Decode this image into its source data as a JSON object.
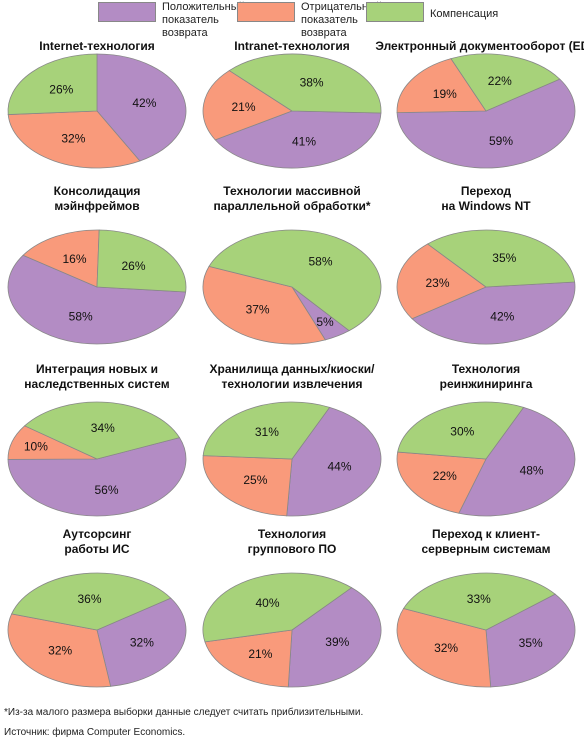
{
  "colors": {
    "positive": "#b38cc4",
    "negative": "#f99a7b",
    "compensation": "#a7d27a",
    "outline": "#888888"
  },
  "legend": [
    {
      "key": "positive",
      "label": "Положительный\nпоказатель возврата"
    },
    {
      "key": "negative",
      "label": "Отрицательный\nпоказатель возврата"
    },
    {
      "key": "compensation",
      "label": "Компенсация"
    }
  ],
  "chart_data": [
    {
      "type": "pie",
      "title": "Internet-технология",
      "slices": [
        {
          "series": "positive",
          "value": 42,
          "label": "42%"
        },
        {
          "series": "negative",
          "value": 32,
          "label": "32%"
        },
        {
          "series": "compensation",
          "value": 26,
          "label": "26%"
        }
      ]
    },
    {
      "type": "pie",
      "title": "Intranet-технология",
      "slices": [
        {
          "series": "positive",
          "value": 41,
          "label": "41%"
        },
        {
          "series": "negative",
          "value": 21,
          "label": "21%"
        },
        {
          "series": "compensation",
          "value": 38,
          "label": "38%"
        }
      ]
    },
    {
      "type": "pie",
      "title": "Электронный документооборот (EDI)",
      "slices": [
        {
          "series": "positive",
          "value": 59,
          "label": "59%"
        },
        {
          "series": "negative",
          "value": 19,
          "label": "19%"
        },
        {
          "series": "compensation",
          "value": 22,
          "label": "22%"
        }
      ]
    },
    {
      "type": "pie",
      "title": "Консолидация\nмэйнфреймов",
      "slices": [
        {
          "series": "positive",
          "value": 58,
          "label": "58%"
        },
        {
          "series": "negative",
          "value": 16,
          "label": "16%"
        },
        {
          "series": "compensation",
          "value": 26,
          "label": "26%"
        }
      ]
    },
    {
      "type": "pie",
      "title": "Технологии массивной\nпараллельной обработки*",
      "slices": [
        {
          "series": "positive",
          "value": 5,
          "label": "5%"
        },
        {
          "series": "negative",
          "value": 37,
          "label": "37%"
        },
        {
          "series": "compensation",
          "value": 58,
          "label": "58%"
        }
      ]
    },
    {
      "type": "pie",
      "title": "Переход\nна Windows NT",
      "slices": [
        {
          "series": "positive",
          "value": 42,
          "label": "42%"
        },
        {
          "series": "negative",
          "value": 23,
          "label": "23%"
        },
        {
          "series": "compensation",
          "value": 35,
          "label": "35%"
        }
      ]
    },
    {
      "type": "pie",
      "title": "Интеграция новых и\nнаследственных систем",
      "slices": [
        {
          "series": "positive",
          "value": 56,
          "label": "56%"
        },
        {
          "series": "negative",
          "value": 10,
          "label": "10%"
        },
        {
          "series": "compensation",
          "value": 34,
          "label": "34%"
        }
      ]
    },
    {
      "type": "pie",
      "title": "Хранилища данных/киоски/\nтехнологии извлечения",
      "slices": [
        {
          "series": "positive",
          "value": 44,
          "label": "44%"
        },
        {
          "series": "negative",
          "value": 25,
          "label": "25%"
        },
        {
          "series": "compensation",
          "value": 31,
          "label": "31%"
        }
      ]
    },
    {
      "type": "pie",
      "title": "Технология\nреинжиниринга",
      "slices": [
        {
          "series": "positive",
          "value": 48,
          "label": "48%"
        },
        {
          "series": "negative",
          "value": 22,
          "label": "22%"
        },
        {
          "series": "compensation",
          "value": 30,
          "label": "30%"
        }
      ]
    },
    {
      "type": "pie",
      "title": "Аутсорсинг\nработы ИС",
      "slices": [
        {
          "series": "positive",
          "value": 32,
          "label": "32%"
        },
        {
          "series": "negative",
          "value": 32,
          "label": "32%"
        },
        {
          "series": "compensation",
          "value": 36,
          "label": "36%"
        }
      ]
    },
    {
      "type": "pie",
      "title": "Технология\nгруппового ПО",
      "slices": [
        {
          "series": "positive",
          "value": 39,
          "label": "39%"
        },
        {
          "series": "negative",
          "value": 21,
          "label": "21%"
        },
        {
          "series": "compensation",
          "value": 40,
          "label": "40%"
        }
      ]
    },
    {
      "type": "pie",
      "title": "Переход к клиент-\nсерверным системам",
      "slices": [
        {
          "series": "positive",
          "value": 35,
          "label": "35%"
        },
        {
          "series": "negative",
          "value": 32,
          "label": "32%"
        },
        {
          "series": "compensation",
          "value": 33,
          "label": "33%"
        }
      ]
    }
  ],
  "footnotes": {
    "note": "*Из-за малого размера выборки данные следует считать приблизительными.",
    "source": "Источник: фирма Computer Economics."
  }
}
